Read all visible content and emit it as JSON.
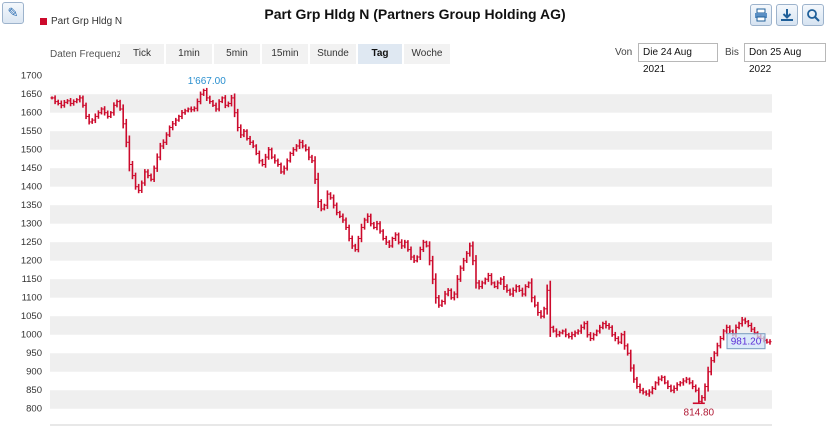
{
  "header": {
    "title": "Part Grp Hldg N (Partners Group Holding AG)",
    "legend_label": "Part Grp Hldg N",
    "legend_color": "#cc0a2c",
    "edit_icon": "pencil-icon",
    "tool_icons": [
      "print-icon",
      "download-icon",
      "zoom-icon"
    ]
  },
  "controls": {
    "frequency_label": "Daten Frequenz",
    "tabs": [
      "Tick",
      "1min",
      "5min",
      "15min",
      "Stunde",
      "Tag",
      "Woche"
    ],
    "active_tab": "Tag",
    "from_label": "Von",
    "from_value": "Die 24 Aug 2021",
    "to_label": "Bis",
    "to_value": "Don 25 Aug 2022"
  },
  "chart_data": {
    "type": "ohlc",
    "series_name": "Part Grp Hldg N",
    "color": "#cc0a2c",
    "ylim": [
      775,
      1710
    ],
    "y_ticks": [
      800,
      850,
      900,
      950,
      1000,
      1050,
      1100,
      1150,
      1200,
      1250,
      1300,
      1350,
      1400,
      1450,
      1500,
      1550,
      1600,
      1650,
      1700
    ],
    "grid": "alternating horizontal bands",
    "high_annotation": "1'667.00",
    "low_annotation": "814.80",
    "last_annotation": "981.20",
    "high_value": 1667.0,
    "low_value": 814.8,
    "last_value": 981.2,
    "closes": [
      1640,
      1630,
      1625,
      1620,
      1628,
      1632,
      1625,
      1630,
      1635,
      1640,
      1620,
      1590,
      1575,
      1580,
      1590,
      1600,
      1610,
      1600,
      1590,
      1600,
      1620,
      1630,
      1610,
      1570,
      1520,
      1460,
      1430,
      1400,
      1390,
      1410,
      1440,
      1430,
      1420,
      1450,
      1480,
      1510,
      1520,
      1540,
      1560,
      1570,
      1580,
      1590,
      1600,
      1605,
      1610,
      1608,
      1612,
      1630,
      1650,
      1660,
      1640,
      1630,
      1620,
      1610,
      1630,
      1640,
      1620,
      1625,
      1640,
      1600,
      1560,
      1540,
      1550,
      1530,
      1520,
      1510,
      1490,
      1470,
      1460,
      1480,
      1500,
      1480,
      1470,
      1460,
      1440,
      1450,
      1470,
      1490,
      1500,
      1510,
      1520,
      1510,
      1500,
      1480,
      1470,
      1420,
      1360,
      1340,
      1350,
      1380,
      1370,
      1350,
      1330,
      1320,
      1310,
      1290,
      1260,
      1240,
      1230,
      1260,
      1290,
      1310,
      1320,
      1300,
      1290,
      1300,
      1280,
      1260,
      1250,
      1240,
      1260,
      1270,
      1250,
      1240,
      1250,
      1230,
      1210,
      1200,
      1210,
      1230,
      1250,
      1240,
      1200,
      1150,
      1100,
      1080,
      1090,
      1110,
      1120,
      1100,
      1110,
      1150,
      1180,
      1200,
      1220,
      1240,
      1200,
      1140,
      1130,
      1140,
      1150,
      1160,
      1140,
      1130,
      1140,
      1150,
      1130,
      1120,
      1110,
      1120,
      1130,
      1120,
      1110,
      1130,
      1140,
      1100,
      1080,
      1060,
      1050,
      1070,
      1120,
      1020,
      1010,
      1000,
      1005,
      1010,
      1000,
      995,
      1000,
      1005,
      1010,
      1020,
      1030,
      1000,
      990,
      1000,
      1010,
      1020,
      1030,
      1025,
      1020,
      1000,
      990,
      980,
      1000,
      970,
      950,
      910,
      880,
      860,
      850,
      845,
      840,
      845,
      855,
      870,
      880,
      885,
      870,
      860,
      850,
      855,
      865,
      870,
      875,
      880,
      870,
      860,
      850,
      820,
      830,
      860,
      900,
      930,
      950,
      970,
      990,
      1010,
      1020,
      1010,
      1000,
      1020,
      1030,
      1040,
      1035,
      1025,
      1015,
      1005,
      995,
      990,
      985,
      980,
      981.2
    ]
  }
}
